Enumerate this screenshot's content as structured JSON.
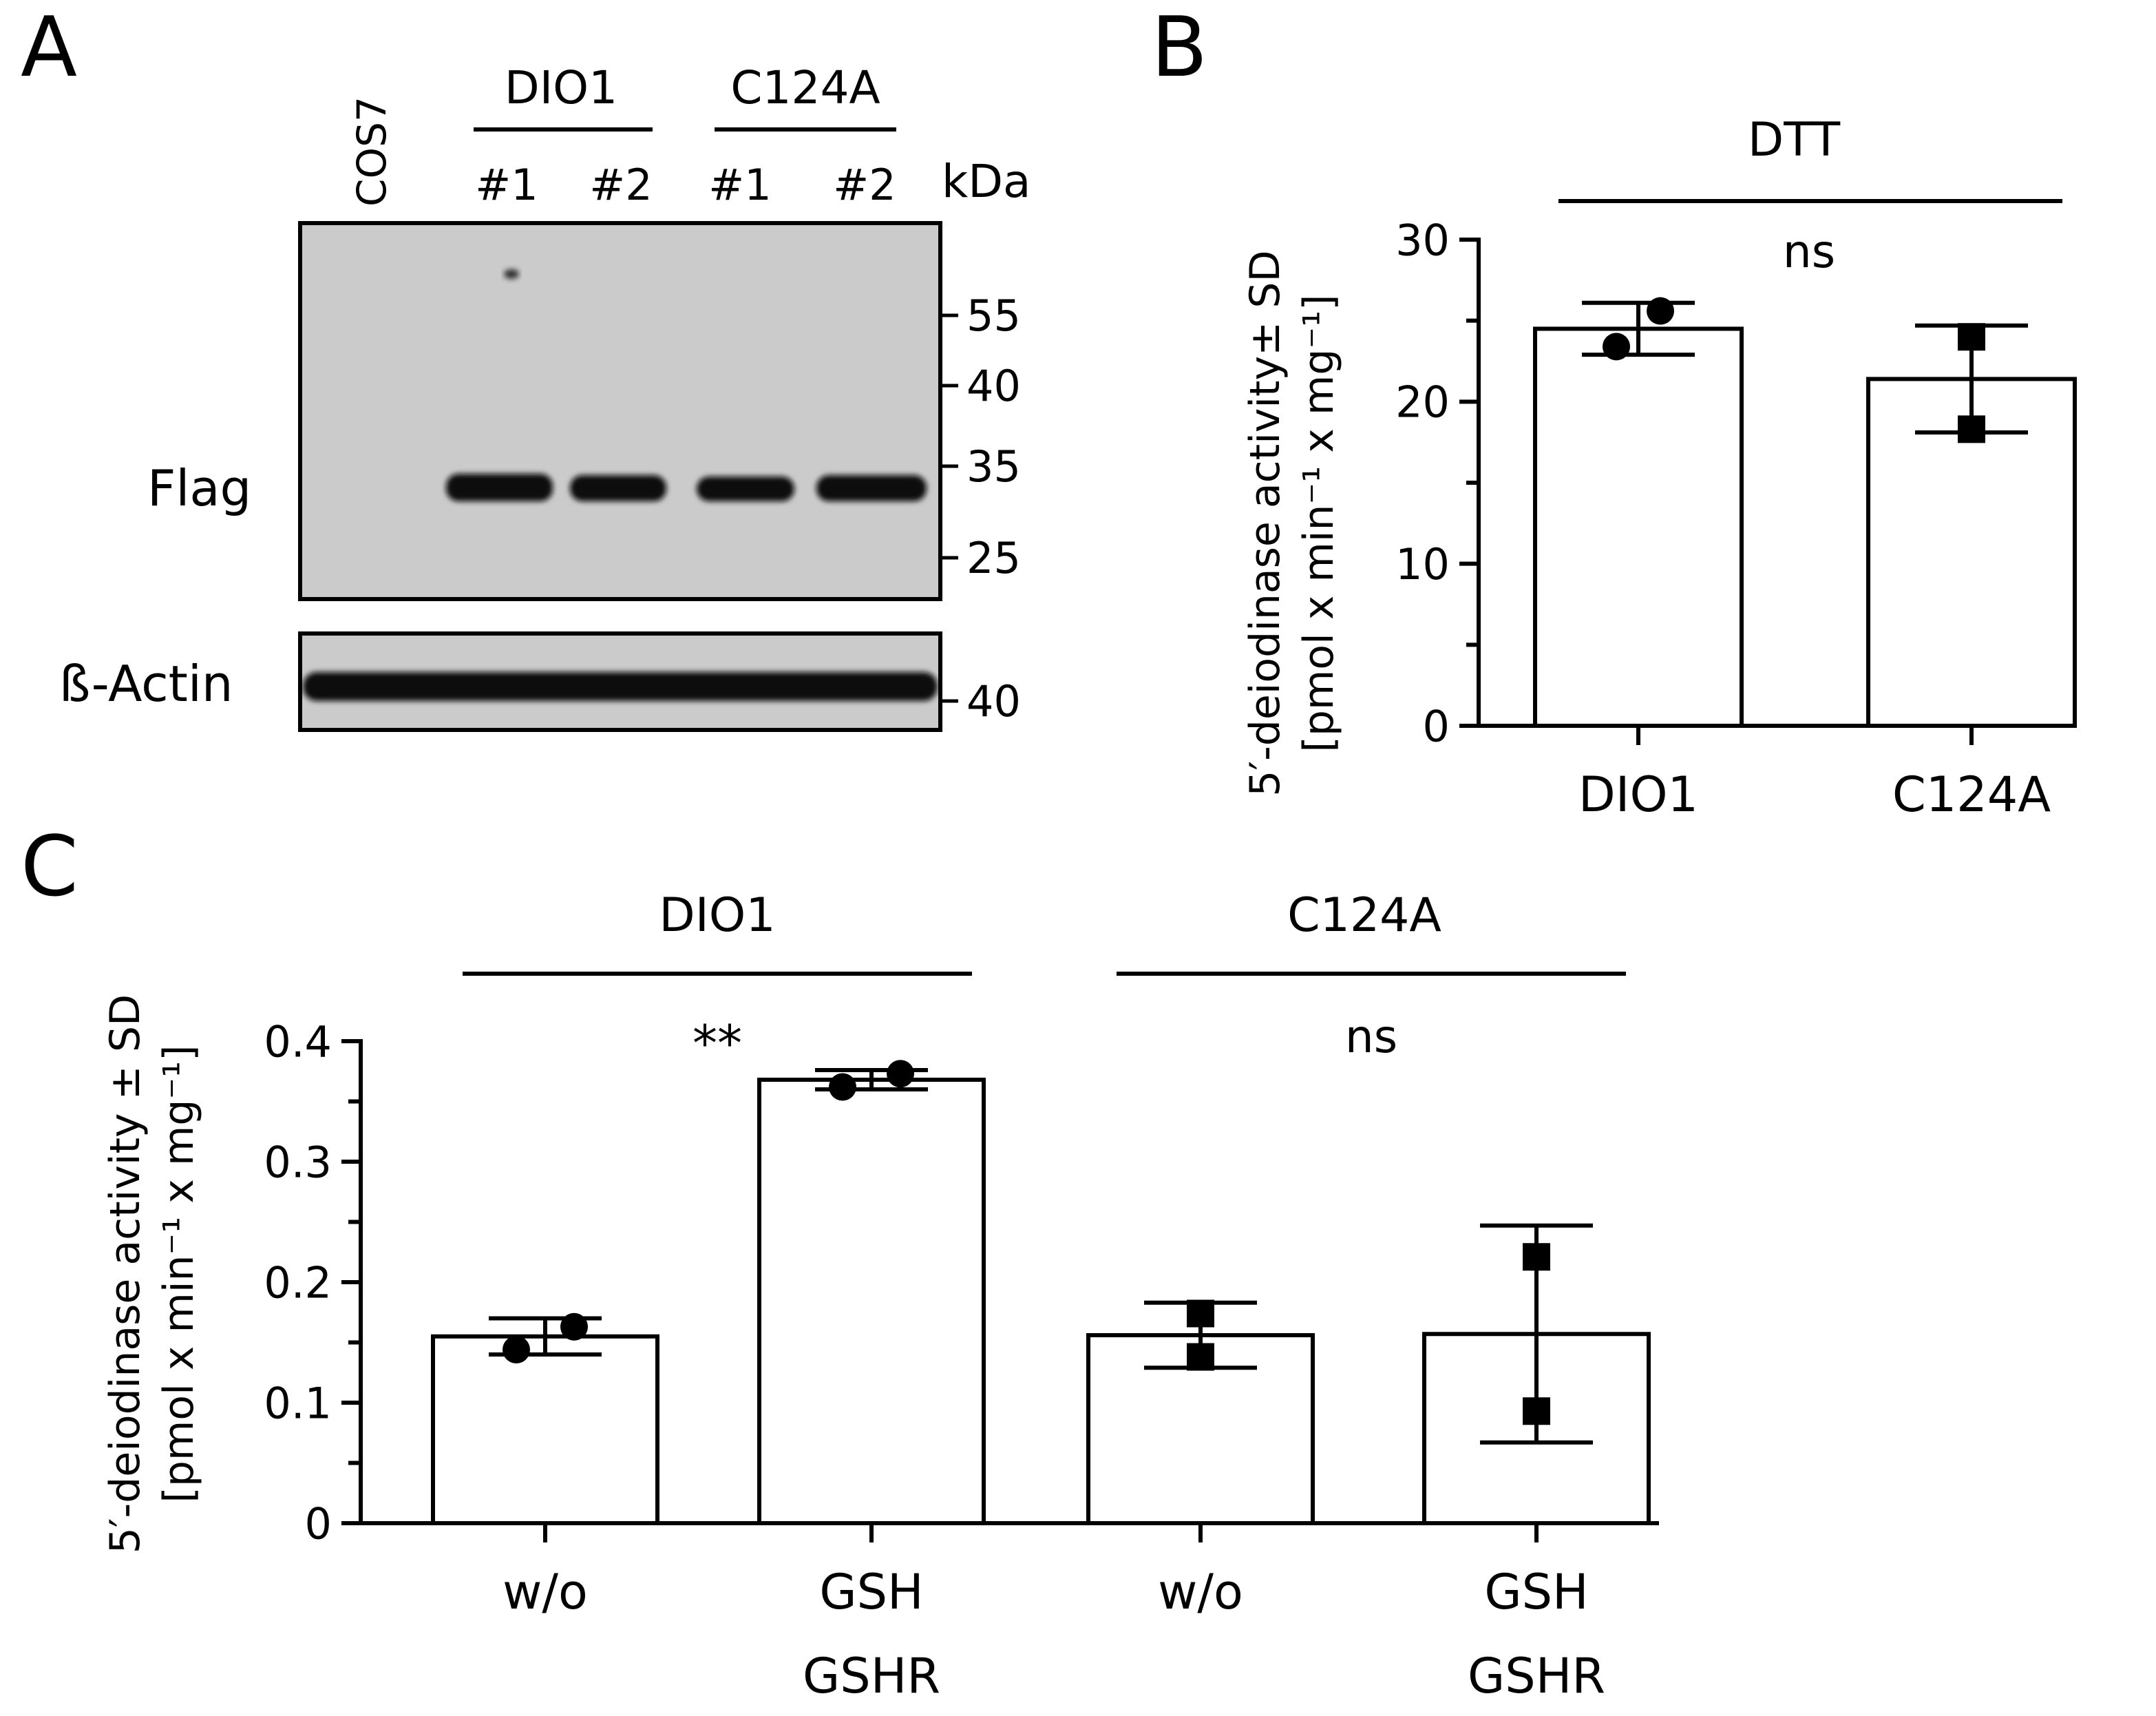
{
  "panels": {
    "a": {
      "letter": "A"
    },
    "b": {
      "letter": "B"
    },
    "c": {
      "letter": "C"
    }
  },
  "blot": {
    "cos7_label": "COS7",
    "group1": "DIO1",
    "group2": "C124A",
    "lane_labels": [
      "#1",
      "#2",
      "#1",
      "#2"
    ],
    "kda_label": "kDa",
    "flag_label": "Flag",
    "actin_label": "ß-Actin",
    "flag_markers": [
      "55",
      "40",
      "35",
      "25"
    ],
    "actin_marker": "40"
  },
  "colors": {
    "ink": "#000000",
    "background": "#ffffff",
    "blot_film": "#cbcbcb",
    "band": "#111111"
  },
  "chart_data": [
    {
      "panel": "B",
      "type": "bar",
      "title": "",
      "group_label": "DTT",
      "significance": "ns",
      "categories": [
        "DIO1",
        "C124A"
      ],
      "values": [
        24.5,
        21.4
      ],
      "error": [
        1.6,
        3.3
      ],
      "points": [
        [
          23.4,
          25.6
        ],
        [
          18.3,
          24.0
        ]
      ],
      "marker": [
        "circle",
        "square"
      ],
      "ylabel_line1": "5′-deiodinase activity± SD",
      "ylabel_line2": "[pmol x min⁻¹ x mg⁻¹]",
      "ylim": [
        0,
        30
      ],
      "yticks": [
        "0",
        "10",
        "20",
        "30"
      ],
      "yticks_values": [
        0,
        10,
        20,
        30
      ]
    },
    {
      "panel": "C",
      "type": "bar",
      "title": "",
      "groups": [
        {
          "label": "DIO1",
          "significance": "**"
        },
        {
          "label": "C124A",
          "significance": "ns"
        }
      ],
      "categories": [
        {
          "line1": "w/o",
          "line2": ""
        },
        {
          "line1": "GSH",
          "line2": "GSHR"
        },
        {
          "line1": "w/o",
          "line2": ""
        },
        {
          "line1": "GSH",
          "line2": "GSHR"
        }
      ],
      "values": [
        0.155,
        0.368,
        0.156,
        0.157
      ],
      "error": [
        0.015,
        0.008,
        0.027,
        0.09
      ],
      "points": [
        [
          0.144,
          0.163
        ],
        [
          0.362,
          0.373
        ],
        [
          0.138,
          0.174
        ],
        [
          0.093,
          0.221
        ]
      ],
      "marker": [
        "circle",
        "circle",
        "square",
        "square"
      ],
      "ylabel_line1": "5′-deiodinase activity ± SD",
      "ylabel_line2": "[pmol x min⁻¹ x mg⁻¹]",
      "ylim": [
        0,
        0.4
      ],
      "yticks": [
        "0",
        "0.1",
        "0.2",
        "0.3",
        "0.4"
      ],
      "yticks_values": [
        0,
        0.1,
        0.2,
        0.3,
        0.4
      ]
    }
  ]
}
